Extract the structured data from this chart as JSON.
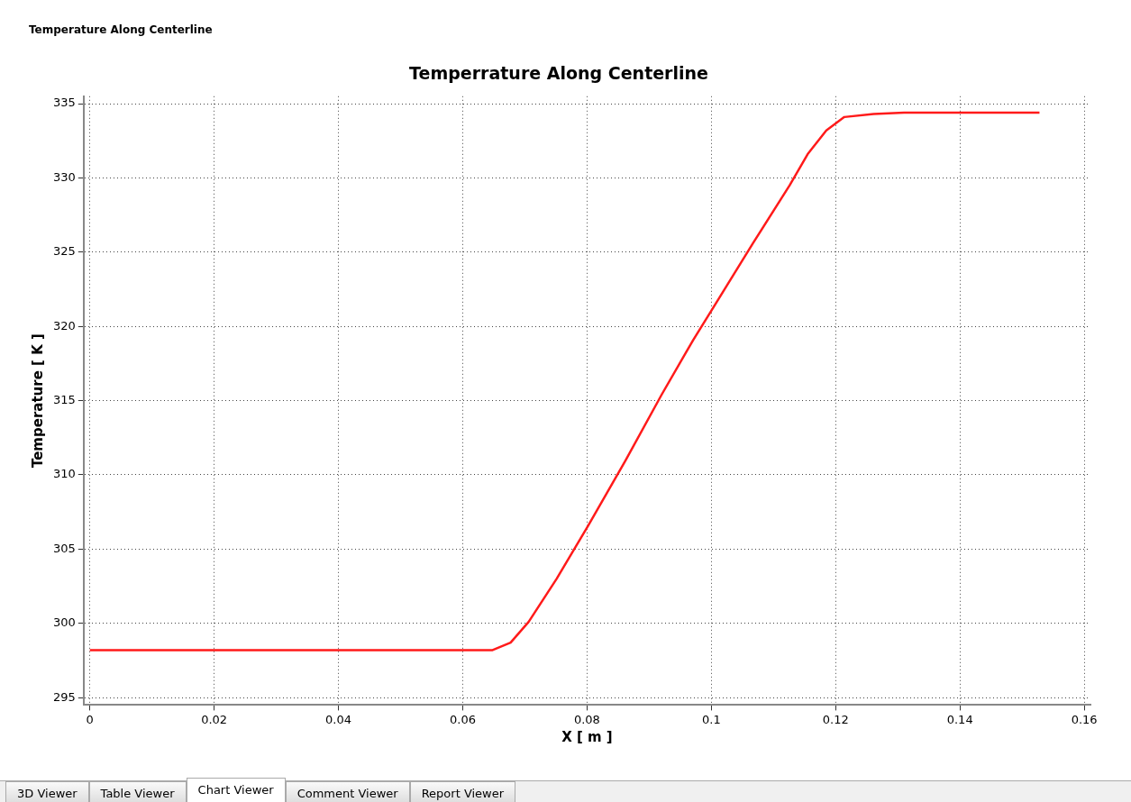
{
  "chart_data": {
    "type": "line",
    "title": "Temperrature Along Centerline",
    "xlabel": "X [ m ]",
    "ylabel": "Temperature [ K ]",
    "annotations": [
      "Temperature Along Centerline",
      "3D Viewer",
      "Table Viewer",
      "Chart Viewer",
      "Comment Viewer",
      "Report Viewer"
    ],
    "series": [
      {
        "color": "#ff1a1a",
        "x": [
          0,
          0.0648,
          0.0677,
          0.0706,
          0.0751,
          0.0802,
          0.0861,
          0.092,
          0.0971,
          0.1008,
          0.1067,
          0.1126,
          0.1155,
          0.1185,
          0.1214,
          0.1261,
          0.131,
          0.1528
        ],
        "values": [
          298.2,
          298.2,
          298.7,
          300.1,
          303.0,
          306.6,
          310.9,
          315.4,
          319.1,
          321.6,
          325.6,
          329.5,
          331.6,
          333.2,
          334.1,
          334.3,
          334.4,
          334.4
        ]
      }
    ],
    "xlim": [
      -0.001,
      0.161
    ],
    "xticks": [
      0,
      0.02,
      0.04,
      0.06,
      0.08,
      0.1,
      0.12,
      0.14,
      0.16
    ],
    "ylim": [
      294.5,
      335.5
    ],
    "yticks": [
      295,
      300,
      305,
      310,
      315,
      320,
      325,
      330,
      335
    ],
    "grid": true,
    "legend": false,
    "marker": "none",
    "line_style": "solid"
  }
}
